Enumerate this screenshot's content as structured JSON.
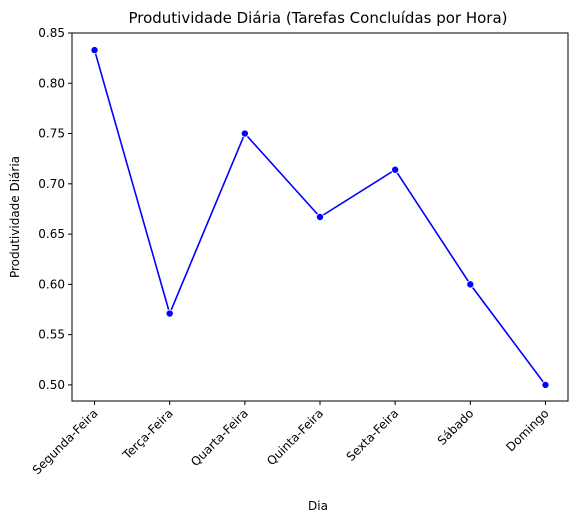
{
  "chart_data": {
    "type": "line",
    "title": "Produtividade Diária (Tarefas Concluídas por Hora)",
    "xlabel": "Dia",
    "ylabel": "Produtividade Diária",
    "categories": [
      "Segunda-Feira",
      "Terça-Feira",
      "Quarta-Feira",
      "Quinta-Feira",
      "Sexta-Feira",
      "Sábado",
      "Domingo"
    ],
    "series": [
      {
        "values": [
          0.833,
          0.571,
          0.75,
          0.667,
          0.714,
          0.6,
          0.5
        ],
        "color": "#0000ff",
        "marker": "circle"
      }
    ],
    "ylim": [
      0.484,
      0.85
    ],
    "yticks": [
      "0.50",
      "0.55",
      "0.60",
      "0.65",
      "0.70",
      "0.75",
      "0.80",
      "0.85"
    ],
    "ytick_values": [
      0.5,
      0.55,
      0.6,
      0.65,
      0.7,
      0.75,
      0.8,
      0.85
    ],
    "grid": false,
    "legend": "none",
    "xtick_rotation_deg": 45
  }
}
